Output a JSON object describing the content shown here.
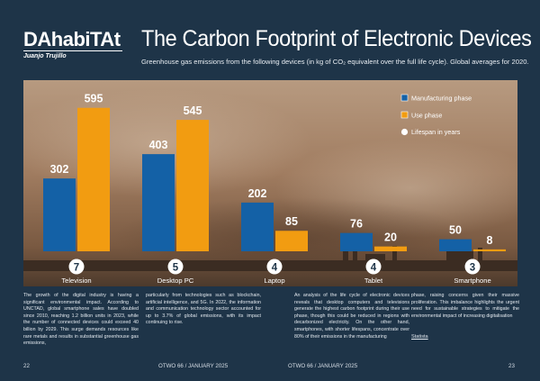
{
  "brand": {
    "logo": "DAhabiTAt",
    "author": "Juanjo Trujillo"
  },
  "header": {
    "title": "The Carbon Footprint of Electronic Devices",
    "subtitle": "Greenhouse gas emissions from the following devices (in kg of CO₂ equivalent over the full life cycle). Global averages for 2020."
  },
  "colors": {
    "manufacturing": "#1461a6",
    "use": "#f29c11",
    "lifespan": "#ffffff",
    "page_background": "#1e3448"
  },
  "legend": {
    "manufacturing": "Manufacturing phase",
    "use": "Use phase",
    "lifespan": "Lifespan in years"
  },
  "chart_data": {
    "type": "bar",
    "categories": [
      "Television",
      "Desktop PC",
      "Laptop",
      "Tablet",
      "Smartphone"
    ],
    "series": [
      {
        "name": "Manufacturing phase",
        "values": [
          302,
          403,
          202,
          76,
          50
        ]
      },
      {
        "name": "Use phase",
        "values": [
          595,
          545,
          85,
          20,
          8
        ]
      }
    ],
    "lifespan_years": [
      7,
      5,
      4,
      4,
      3
    ],
    "legend_position": "top-right",
    "grid": false,
    "ylim": [
      0,
      650
    ]
  },
  "text": {
    "col1": "The growth of the digital industry is having a significant environmental impact. According to UNCTAD, global smartphone sales have doubled since 2010, reaching 1.2 billion units in 2023, while the number of connected devices could exceed 40 billion by 2029. This surge demands resources like rare metals and results in substantial greenhouse gas emissions,",
    "col2": "particularly from technologies such as blockchain, artificial intelligence, and 5G. In 2022, the information and communication technology sector accounted for up to 3.7% of global emissions, with its impact continuing to rise.",
    "col3": "An analysis of the life cycle of electronic devices reveals that desktop computers and televisions generate the highest carbon footprint during their use phase, though this could be reduced in regions with decarbonized electricity. On the other hand, smartphones, with shorter lifespans, concentrate over 80% of their emissions in the manufacturing",
    "col4": "phase, raising concerns given their massive proliferation. This imbalance highlights the urgent need for sustainable strategies to mitigate the environmental impact of increasing digitalisation",
    "source": "Statista"
  },
  "footer": {
    "page_left": "22",
    "mag_left": "OTWO 66 / JANUARY 2025",
    "mag_right": "OTWO 66 / JANUARY 2025",
    "page_right": "23"
  }
}
